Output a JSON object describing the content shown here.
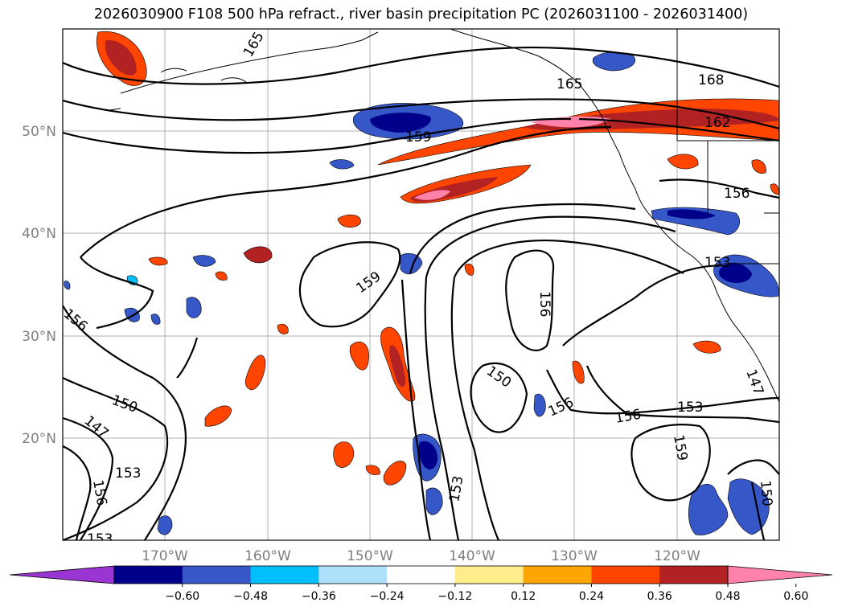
{
  "title": "2026030900 F108 500 hPa refract., river basin precipitation PC (2026031100 - 2026031400)",
  "lat_labels": [
    "50°N",
    "40°N",
    "30°N",
    "20°N"
  ],
  "lon_labels": [
    "170°W",
    "160°W",
    "150°W",
    "140°W",
    "130°W",
    "120°W"
  ],
  "contour_labels": [
    "165",
    "165",
    "168",
    "162",
    "159",
    "156",
    "159",
    "156",
    "156",
    "150",
    "156",
    "156",
    "153",
    "159",
    "150",
    "153",
    "153",
    "156",
    "150",
    "153",
    "147",
    "147",
    "153",
    "156"
  ],
  "colorbar": {
    "ticks": [
      "−0.60",
      "−0.48",
      "−0.36",
      "−0.24",
      "−0.12",
      "0.12",
      "0.24",
      "0.36",
      "0.48",
      "0.60"
    ],
    "colors": [
      "#9a34d2",
      "#00008b",
      "#3557c8",
      "#00bfff",
      "#aee0fb",
      "#ffffff",
      "#ffec8b",
      "#ffa500",
      "#ff4500",
      "#b22222",
      "#ff82ab"
    ]
  },
  "map_extent": {
    "lon": [
      -180,
      -110
    ],
    "lat": [
      10,
      60
    ]
  }
}
